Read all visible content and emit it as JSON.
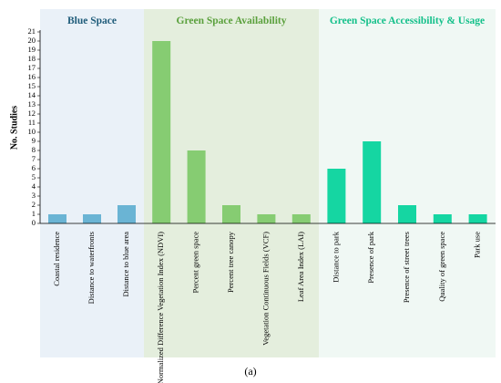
{
  "figure": {
    "caption": "(a)"
  },
  "chart_data": {
    "type": "bar",
    "ylabel": "No. Studies",
    "xlabel": "",
    "ylim": [
      0,
      21
    ],
    "y_ticks": [
      0,
      1,
      2,
      3,
      4,
      5,
      6,
      7,
      8,
      9,
      10,
      11,
      12,
      13,
      14,
      15,
      16,
      17,
      18,
      19,
      20,
      21
    ],
    "grid": false,
    "legend": "none",
    "groups": [
      {
        "name": "Blue Space",
        "color": "#6ab4d4",
        "panel_color": "#eaf1f8",
        "title_color": "#1f5c7a",
        "categories": [
          "Coastal residence",
          "Distance to waterfronts",
          "Distance to blue area"
        ],
        "values": [
          1,
          1,
          2
        ]
      },
      {
        "name": "Green Space Availability",
        "color": "#86cc72",
        "panel_color": "#e4eedd",
        "title_color": "#5aa03c",
        "categories": [
          "Normalized Difference Vegetation Index (NDVI)",
          "Percent green space",
          "Percent tree canopy",
          "Vegetation Continuous Fields (VCF)",
          "Leaf Area Index (LAI)"
        ],
        "values": [
          20,
          8,
          2,
          1,
          1
        ]
      },
      {
        "name": "Green Space Accessibility & Usage",
        "color": "#15d6a2",
        "panel_color": "#f0f8f4",
        "title_color": "#14c08a",
        "categories": [
          "Distance to park",
          "Presence of park",
          "Presence of street trees",
          "Quality of green space",
          "Park use"
        ],
        "values": [
          6,
          9,
          2,
          1,
          1
        ]
      }
    ]
  }
}
